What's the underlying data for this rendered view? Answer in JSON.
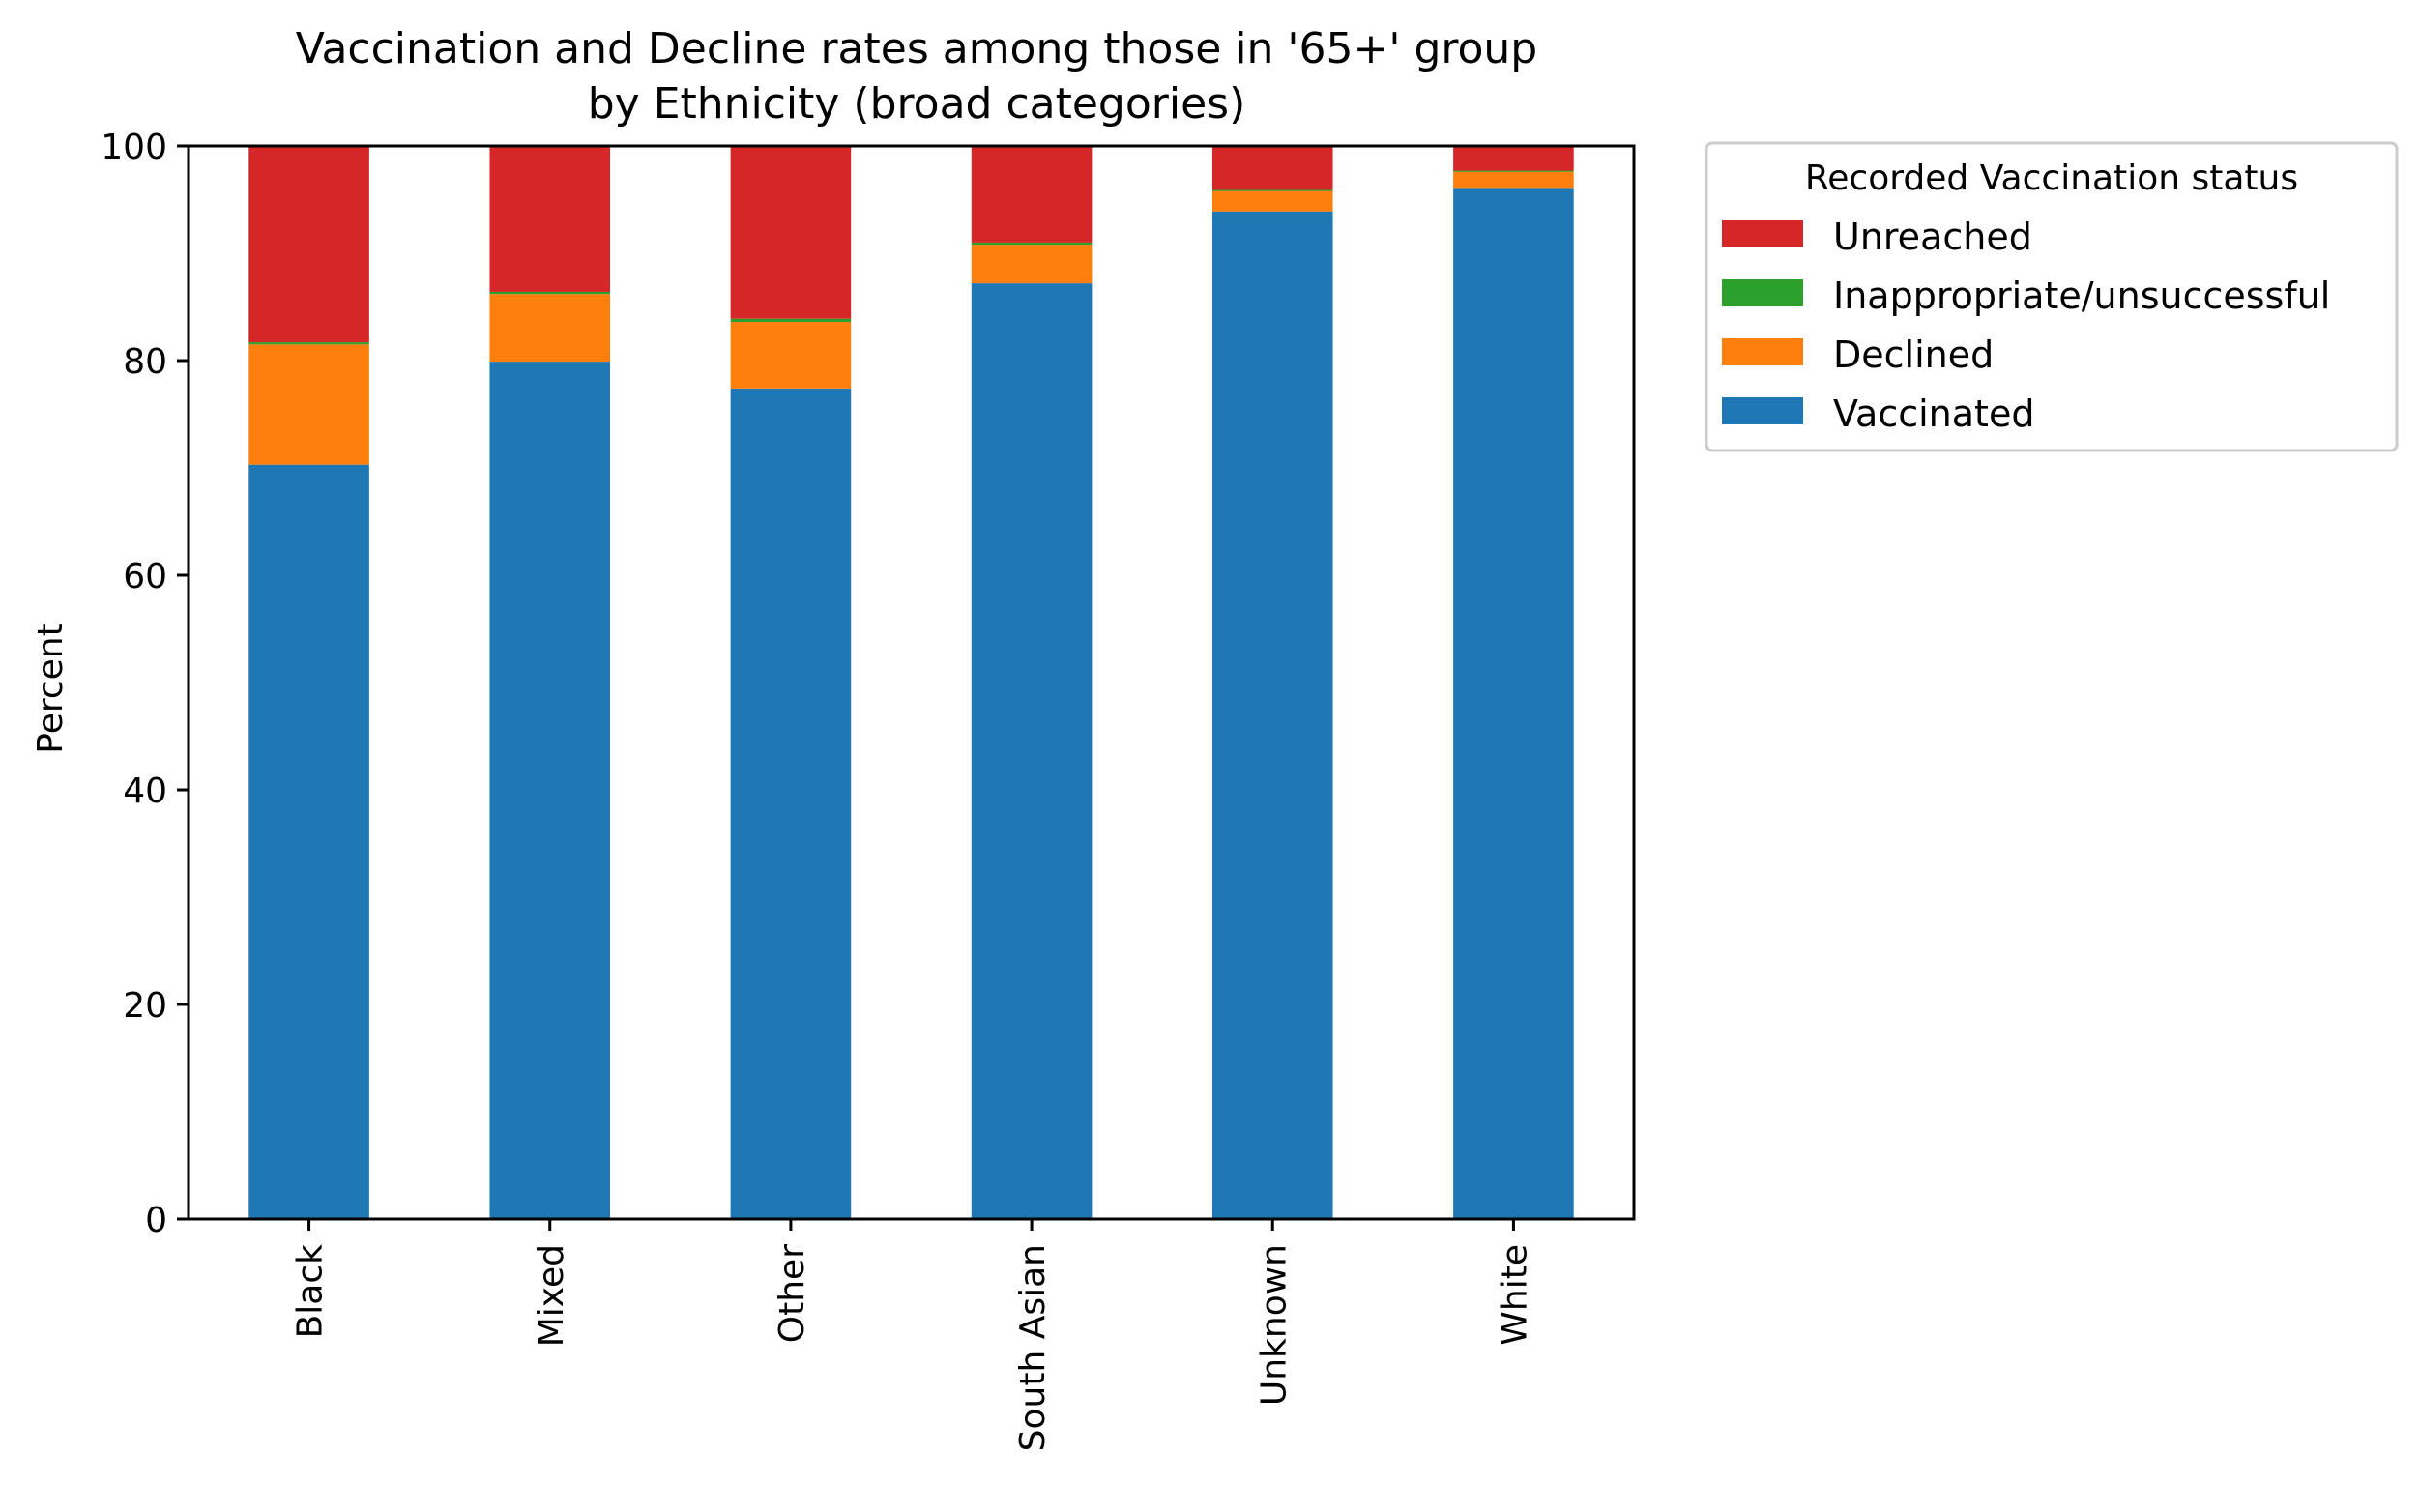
{
  "chart_data": {
    "type": "bar",
    "stacked": true,
    "title": "Vaccination and Decline rates among those in '65+' group",
    "subtitle": "by Ethnicity (broad categories)",
    "xlabel": "",
    "ylabel": "Percent",
    "ylim": [
      0,
      100
    ],
    "yticks": [
      0,
      20,
      40,
      60,
      80,
      100
    ],
    "grid": false,
    "categories": [
      "Black",
      "Mixed",
      "Other",
      "South Asian",
      "Unknown",
      "White"
    ],
    "series": [
      {
        "name": "Vaccinated",
        "color": "#1f77b4",
        "values": [
          70.3,
          79.9,
          77.4,
          87.2,
          93.9,
          96.1
        ]
      },
      {
        "name": "Declined",
        "color": "#ff7f0e",
        "values": [
          11.2,
          6.3,
          6.2,
          3.6,
          1.9,
          1.5
        ]
      },
      {
        "name": "Inappropriate/unsuccessful",
        "color": "#2ca02c",
        "values": [
          0.2,
          0.2,
          0.3,
          0.2,
          0.1,
          0.1
        ]
      },
      {
        "name": "Unreached",
        "color": "#d62728",
        "values": [
          18.3,
          13.6,
          16.1,
          9.0,
          4.1,
          2.3
        ]
      }
    ],
    "legend": {
      "title": "Recorded Vaccination status",
      "placement": "outside right, top",
      "order": [
        "Unreached",
        "Inappropriate/unsuccessful",
        "Declined",
        "Vaccinated"
      ]
    }
  }
}
